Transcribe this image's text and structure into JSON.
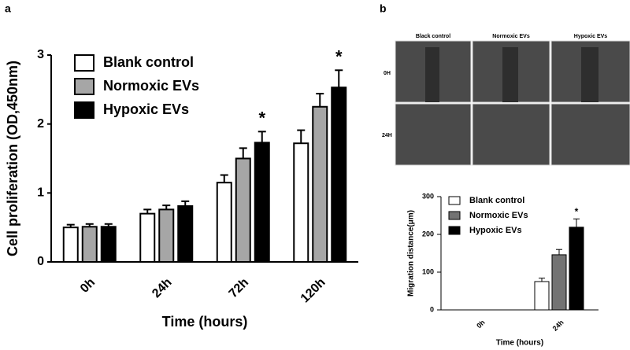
{
  "panel_labels": [
    "a",
    "b"
  ],
  "image_panel": {
    "columns": [
      "Black control",
      "Normoxic EVs",
      "Hypoxic EVs"
    ],
    "rows": [
      "0H",
      "24H"
    ]
  },
  "chart_data": [
    {
      "type": "bar",
      "x_label": "Time (hours)",
      "y_label": "Cell proliferation (OD,450nm)",
      "categories": [
        "0h",
        "24h",
        "72h",
        "120h"
      ],
      "series": [
        {
          "name": "Blank control",
          "color": "#ffffff",
          "values": [
            0.5,
            0.7,
            1.15,
            1.72
          ],
          "errors": [
            0.04,
            0.06,
            0.11,
            0.19
          ]
        },
        {
          "name": "Normoxic EVs",
          "color": "#a6a6a6",
          "values": [
            0.51,
            0.76,
            1.5,
            2.25
          ],
          "errors": [
            0.04,
            0.06,
            0.15,
            0.19
          ]
        },
        {
          "name": "Hypoxic EVs",
          "color": "#000000",
          "values": [
            0.51,
            0.81,
            1.73,
            2.53
          ],
          "errors": [
            0.04,
            0.07,
            0.16,
            0.25
          ]
        }
      ],
      "annotations": [
        {
          "text": "*",
          "x": "72h",
          "series": "Hypoxic EVs"
        },
        {
          "text": "*",
          "x": "120h",
          "series": "Hypoxic EVs"
        }
      ],
      "ylim": [
        0,
        3
      ],
      "yticks": [
        0,
        1,
        2,
        3
      ],
      "legend": "top-left"
    },
    {
      "type": "bar",
      "x_label": "Time (hours)",
      "y_label": "Migration distance(μm)",
      "categories": [
        "0h",
        "24h"
      ],
      "series": [
        {
          "name": "Blank control",
          "color": "#ffffff",
          "values": [
            0,
            75
          ],
          "errors": [
            0,
            9
          ]
        },
        {
          "name": "Normoxic EVs",
          "color": "#737373",
          "values": [
            0,
            146
          ],
          "errors": [
            0,
            14
          ]
        },
        {
          "name": "Hypoxic EVs",
          "color": "#000000",
          "values": [
            0,
            219
          ],
          "errors": [
            0,
            22
          ]
        }
      ],
      "annotations": [
        {
          "text": "*",
          "x": "24h",
          "series": "Hypoxic EVs"
        }
      ],
      "ylim": [
        0,
        300
      ],
      "yticks": [
        0,
        100,
        200,
        300
      ],
      "legend": "top-left"
    }
  ]
}
